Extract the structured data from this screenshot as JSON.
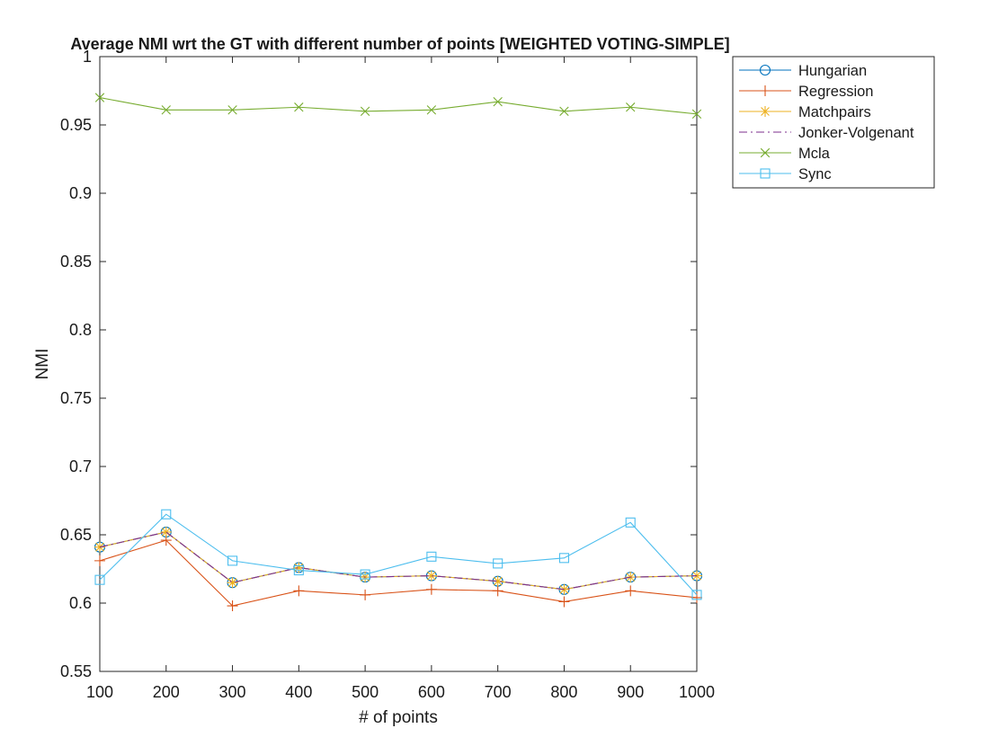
{
  "chart_data": {
    "type": "line",
    "title": "Average NMI wrt the GT with different number of points [WEIGHTED VOTING-SIMPLE]",
    "xlabel": "# of points",
    "ylabel": "NMI",
    "x": [
      100,
      200,
      300,
      400,
      500,
      600,
      700,
      800,
      900,
      1000
    ],
    "xlim": [
      100,
      1000
    ],
    "ylim": [
      0.55,
      1
    ],
    "xticks": [
      "100",
      "200",
      "300",
      "400",
      "500",
      "600",
      "700",
      "800",
      "900",
      "1000"
    ],
    "yticks": [
      "0.55",
      "0.6",
      "0.65",
      "0.7",
      "0.75",
      "0.8",
      "0.85",
      "0.9",
      "0.95",
      "1"
    ],
    "ytick_values": [
      0.55,
      0.6,
      0.65,
      0.7,
      0.75,
      0.8,
      0.85,
      0.9,
      0.95,
      1.0
    ],
    "grid": false,
    "legend_position": "outside-top-right",
    "series": [
      {
        "name": "Hungarian",
        "color": "#0072BD",
        "marker": "circle",
        "dash": "solid",
        "values": [
          0.641,
          0.652,
          0.615,
          0.626,
          0.619,
          0.62,
          0.616,
          0.61,
          0.619,
          0.62
        ]
      },
      {
        "name": "Regression",
        "color": "#D95319",
        "marker": "plus",
        "dash": "solid",
        "values": [
          0.631,
          0.646,
          0.598,
          0.609,
          0.606,
          0.61,
          0.609,
          0.601,
          0.609,
          0.604
        ]
      },
      {
        "name": "Matchpairs",
        "color": "#EDB120",
        "marker": "asterisk",
        "dash": "solid",
        "values": [
          0.641,
          0.652,
          0.615,
          0.626,
          0.619,
          0.62,
          0.616,
          0.61,
          0.619,
          0.62
        ]
      },
      {
        "name": "Jonker-Volgenant",
        "color": "#7E2F8E",
        "marker": "none",
        "dash": "dashdot",
        "values": [
          0.641,
          0.652,
          0.615,
          0.626,
          0.619,
          0.62,
          0.616,
          0.61,
          0.619,
          0.62
        ]
      },
      {
        "name": "Mcla",
        "color": "#77AC30",
        "marker": "x",
        "dash": "solid",
        "values": [
          0.97,
          0.961,
          0.961,
          0.963,
          0.96,
          0.961,
          0.967,
          0.96,
          0.963,
          0.958
        ]
      },
      {
        "name": "Sync",
        "color": "#4DBEEE",
        "marker": "square",
        "dash": "solid",
        "values": [
          0.617,
          0.665,
          0.631,
          0.624,
          0.621,
          0.634,
          0.629,
          0.633,
          0.659,
          0.606
        ]
      }
    ]
  }
}
